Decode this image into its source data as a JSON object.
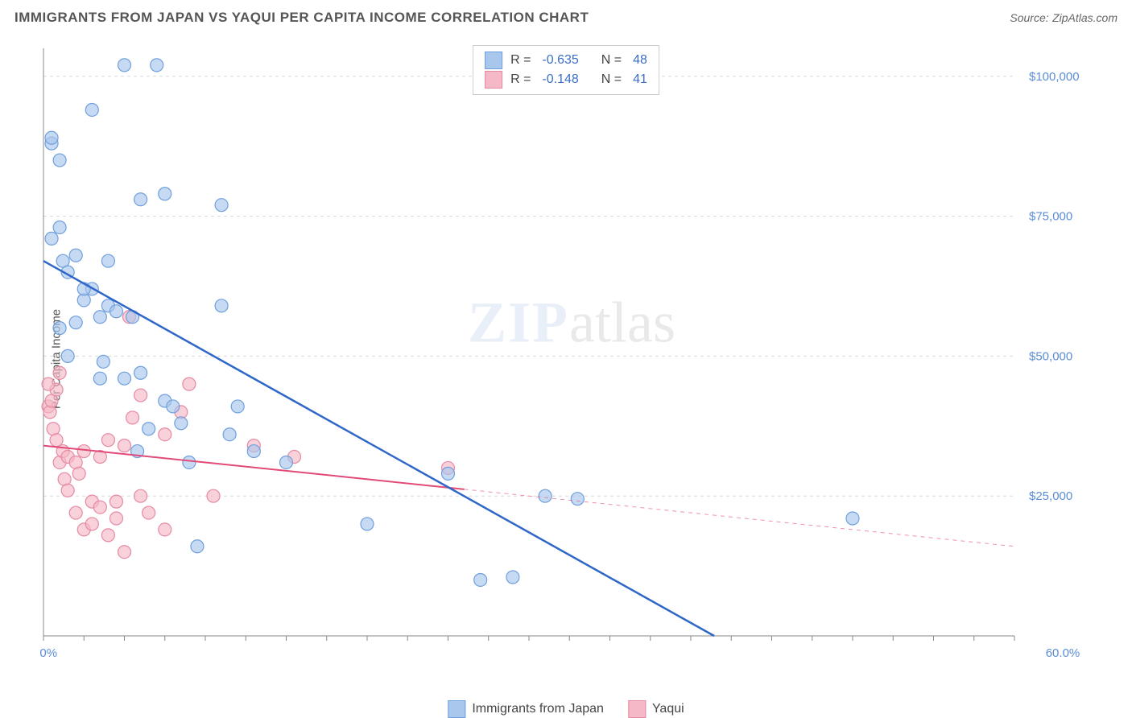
{
  "title": "IMMIGRANTS FROM JAPAN VS YAQUI PER CAPITA INCOME CORRELATION CHART",
  "source_label": "Source:",
  "source_name": "ZipAtlas.com",
  "ylabel": "Per Capita Income",
  "watermark_bold": "ZIP",
  "watermark_light": "atlas",
  "chart": {
    "type": "scatter-with-regression",
    "background_color": "#ffffff",
    "grid_color": "#d9d9d9",
    "axis_color": "#888888",
    "tick_color": "#888888",
    "x_axis": {
      "min": 0.0,
      "max": 60.0,
      "label_min": "0.0%",
      "label_max": "60.0%",
      "minor_tick_step": 2.5
    },
    "y_axis": {
      "min": 0,
      "max": 105000,
      "gridlines": [
        25000,
        50000,
        75000,
        100000
      ],
      "labels": [
        "$25,000",
        "$50,000",
        "$75,000",
        "$100,000"
      ]
    },
    "series": [
      {
        "name": "Immigrants from Japan",
        "color_fill": "#a9c6ec",
        "color_stroke": "#6f9fdc",
        "marker_radius": 8,
        "marker_opacity": 0.65,
        "regression": {
          "color": "#2f67c9",
          "width": 2.5,
          "y_at_xmin": 67000,
          "y_at_xmax": -30000,
          "dash_after_data": false
        },
        "stats": {
          "R": "-0.635",
          "N": "48"
        },
        "points": [
          [
            0.5,
            88000
          ],
          [
            0.5,
            89000
          ],
          [
            1.0,
            73000
          ],
          [
            0.5,
            71000
          ],
          [
            1.0,
            85000
          ],
          [
            1.2,
            67000
          ],
          [
            1.5,
            65000
          ],
          [
            2.0,
            68000
          ],
          [
            2.0,
            56000
          ],
          [
            2.5,
            60000
          ],
          [
            3.0,
            62000
          ],
          [
            3.0,
            94000
          ],
          [
            3.5,
            46000
          ],
          [
            3.5,
            57000
          ],
          [
            4.0,
            67000
          ],
          [
            4.0,
            59000
          ],
          [
            4.5,
            58000
          ],
          [
            5.0,
            46000
          ],
          [
            5.0,
            102000
          ],
          [
            5.5,
            57000
          ],
          [
            6.0,
            78000
          ],
          [
            6.0,
            47000
          ],
          [
            6.5,
            37000
          ],
          [
            7.0,
            102000
          ],
          [
            7.5,
            79000
          ],
          [
            7.5,
            42000
          ],
          [
            8.0,
            41000
          ],
          [
            9.0,
            31000
          ],
          [
            9.5,
            16000
          ],
          [
            11.0,
            77000
          ],
          [
            11.0,
            59000
          ],
          [
            11.5,
            36000
          ],
          [
            12.0,
            41000
          ],
          [
            13.0,
            33000
          ],
          [
            15.0,
            31000
          ],
          [
            20.0,
            20000
          ],
          [
            25.0,
            29000
          ],
          [
            27.0,
            10000
          ],
          [
            29.0,
            10500
          ],
          [
            31.0,
            25000
          ],
          [
            33.0,
            24500
          ],
          [
            50.0,
            21000
          ],
          [
            1.0,
            55000
          ],
          [
            2.5,
            62000
          ],
          [
            3.7,
            49000
          ],
          [
            5.8,
            33000
          ],
          [
            8.5,
            38000
          ],
          [
            1.5,
            50000
          ]
        ]
      },
      {
        "name": "Yaqui",
        "color_fill": "#f4b8c6",
        "color_stroke": "#e68aa3",
        "marker_radius": 8,
        "marker_opacity": 0.65,
        "regression": {
          "color": "#e24a78",
          "width": 2,
          "y_at_xmin": 34000,
          "y_at_xmax": 16000,
          "dash_after_data": true,
          "data_x_extent": 26
        },
        "stats": {
          "R": "-0.148",
          "N": "41"
        },
        "points": [
          [
            0.3,
            41000
          ],
          [
            0.4,
            40000
          ],
          [
            0.5,
            42000
          ],
          [
            0.6,
            37000
          ],
          [
            0.8,
            44000
          ],
          [
            0.8,
            35000
          ],
          [
            1.0,
            47000
          ],
          [
            1.0,
            31000
          ],
          [
            1.2,
            33000
          ],
          [
            1.3,
            28000
          ],
          [
            1.5,
            32000
          ],
          [
            1.5,
            26000
          ],
          [
            2.0,
            31000
          ],
          [
            2.0,
            22000
          ],
          [
            2.2,
            29000
          ],
          [
            2.5,
            19000
          ],
          [
            2.5,
            33000
          ],
          [
            3.0,
            20000
          ],
          [
            3.0,
            24000
          ],
          [
            3.5,
            32000
          ],
          [
            3.5,
            23000
          ],
          [
            4.0,
            18000
          ],
          [
            4.0,
            35000
          ],
          [
            4.5,
            21000
          ],
          [
            4.5,
            24000
          ],
          [
            5.0,
            15000
          ],
          [
            5.0,
            34000
          ],
          [
            5.3,
            57000
          ],
          [
            5.5,
            39000
          ],
          [
            6.0,
            25000
          ],
          [
            6.0,
            43000
          ],
          [
            6.5,
            22000
          ],
          [
            7.5,
            36000
          ],
          [
            7.5,
            19000
          ],
          [
            8.5,
            40000
          ],
          [
            9.0,
            45000
          ],
          [
            10.5,
            25000
          ],
          [
            13.0,
            34000
          ],
          [
            15.5,
            32000
          ],
          [
            25.0,
            30000
          ],
          [
            0.3,
            45000
          ]
        ]
      }
    ],
    "stats_box": {
      "border_color": "#cccccc",
      "bg_color": "#ffffff",
      "text_color": "#444444",
      "value_color": "#3b6fc7"
    },
    "bottom_legend": {
      "items": [
        {
          "label": "Immigrants from Japan",
          "swatch": "#a9c6ec",
          "border": "#6f9fdc"
        },
        {
          "label": "Yaqui",
          "swatch": "#f4b8c6",
          "border": "#e68aa3"
        }
      ]
    }
  }
}
